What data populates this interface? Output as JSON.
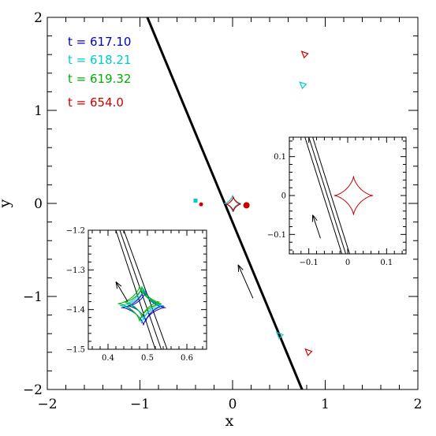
{
  "chart_data": {
    "type": "line",
    "xlabel": "x",
    "ylabel": "y",
    "xlim": [
      -2,
      2
    ],
    "ylim": [
      -2,
      2
    ],
    "xticks": [
      "−2",
      "−1",
      "0",
      "1",
      "2"
    ],
    "yticks": [
      "−2",
      "−1",
      "0",
      "1",
      "2"
    ],
    "legend": [
      {
        "text": "t = 617.10",
        "color": "#0000cc"
      },
      {
        "text": "t = 618.21",
        "color": "#00cccc"
      },
      {
        "text": "t = 619.32",
        "color": "#00b000"
      },
      {
        "text": "t = 654.0",
        "color": "#cc0000"
      }
    ],
    "source_track": {
      "p1": [
        -0.92,
        2.0
      ],
      "p2": [
        0.75,
        -2.0
      ]
    },
    "direction_arrow": {
      "from": [
        0.22,
        -1.02
      ],
      "to": [
        0.06,
        -0.66
      ]
    },
    "caustic_marks": [
      {
        "x": -0.4,
        "y": 0.03,
        "color": "#00cccc",
        "shape": "square"
      },
      {
        "x": -0.34,
        "y": -0.01,
        "color": "#cc0000",
        "shape": "dot"
      },
      {
        "x": 0.15,
        "y": -0.02,
        "color": "#cc0000",
        "shape": "dot"
      },
      {
        "x": 0.78,
        "y": 1.6,
        "color": "#cc0000",
        "shape": "triangle"
      },
      {
        "x": 0.76,
        "y": 1.27,
        "color": "#00cccc",
        "shape": "triangle"
      },
      {
        "x": 0.51,
        "y": -1.42,
        "color": "#00cccc",
        "shape": "triangle"
      },
      {
        "x": 0.82,
        "y": -1.6,
        "color": "#cc0000",
        "shape": "triangle"
      }
    ],
    "central_caustic": {
      "center": [
        0.0,
        0.0
      ],
      "size": 0.09,
      "colors": [
        "#00cccc",
        "#cc0000"
      ]
    },
    "insets": [
      {
        "name": "inset-right",
        "xlim": [
          -0.15,
          0.15
        ],
        "ylim": [
          -0.15,
          0.15
        ],
        "xticks": [
          "−0.1",
          "0",
          "0.1"
        ],
        "yticks": [
          "0.1",
          "0",
          "−0.1"
        ],
        "caustic_color": "#cc0000",
        "caustic_center": [
          0.015,
          0.0
        ],
        "caustic_size": 0.05,
        "tracks": [
          {
            "p1": [
              -0.11,
              0.15
            ],
            "p2": [
              -0.015,
              -0.15
            ]
          },
          {
            "p1": [
              -0.1,
              0.15
            ],
            "p2": [
              -0.005,
              -0.15
            ]
          },
          {
            "p1": [
              -0.09,
              0.15
            ],
            "p2": [
              0.005,
              -0.15
            ]
          }
        ],
        "arrow": {
          "from": [
            -0.07,
            -0.11
          ],
          "to": [
            -0.09,
            -0.05
          ]
        }
      },
      {
        "name": "inset-left",
        "xlim": [
          0.35,
          0.65
        ],
        "ylim": [
          -1.5,
          -1.2
        ],
        "xticks": [
          "0.4",
          "0.5",
          "0.6"
        ],
        "yticks": [
          "−1.2",
          "−1.3",
          "−1.4",
          "−1.5"
        ],
        "tracks": [
          {
            "p1": [
              0.42,
              -1.2
            ],
            "p2": [
              0.52,
              -1.5
            ]
          },
          {
            "p1": [
              0.43,
              -1.2
            ],
            "p2": [
              0.535,
              -1.5
            ]
          },
          {
            "p1": [
              0.44,
              -1.2
            ],
            "p2": [
              0.55,
              -1.5
            ]
          }
        ],
        "arrow": {
          "from": [
            0.45,
            -1.38
          ],
          "to": [
            0.42,
            -1.33
          ]
        },
        "caustics": [
          {
            "color": "#0000cc",
            "center": [
              0.49,
              -1.395
            ],
            "size": 0.05
          },
          {
            "color": "#00cccc",
            "center": [
              0.485,
              -1.39
            ],
            "size": 0.05
          },
          {
            "color": "#00b000",
            "center": [
              0.48,
              -1.385
            ],
            "size": 0.05
          }
        ]
      }
    ]
  }
}
